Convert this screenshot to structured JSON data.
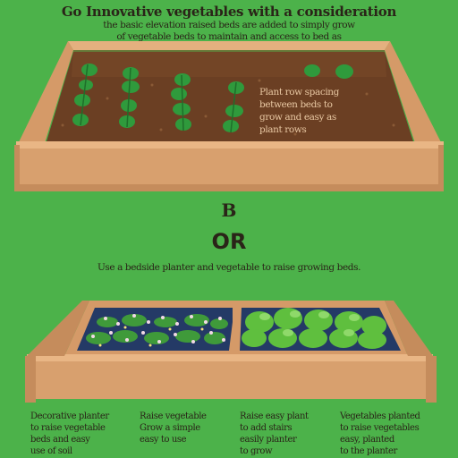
{
  "header": {
    "title": "Go Innovative vegetables with a consideration",
    "subtitle_lines": [
      "the basic elevation raised beds are added to simply grow",
      "of vegetable beds to maintain and access to bed as"
    ]
  },
  "top_bed": {
    "soil_note_lines": [
      "Plant row spacing",
      "between beds to",
      "grow and easy as",
      "plant rows"
    ]
  },
  "middle": {
    "letter": "B",
    "word": "OR",
    "caption": "Use a bedside planter and vegetable to raise growing beds."
  },
  "columns": [
    {
      "lines": [
        "Decorative planter",
        "to raise vegetable",
        "beds and easy",
        "use of soil"
      ]
    },
    {
      "lines": [
        "Raise vegetable",
        "Grow a simple",
        "easy to use"
      ]
    },
    {
      "lines": [
        "Raise easy plant",
        "to add stairs",
        "easily planter",
        "to grow"
      ]
    },
    {
      "lines": [
        "Vegetables planted",
        "to raise vegetables",
        "easy, planted",
        "to the planter"
      ]
    }
  ],
  "colors": {
    "background": "#4cb24a",
    "wood": "#d59a68",
    "wood_dark": "#b97c4e",
    "soil": "#6b3f23",
    "leaf": "#2f9a3c"
  }
}
